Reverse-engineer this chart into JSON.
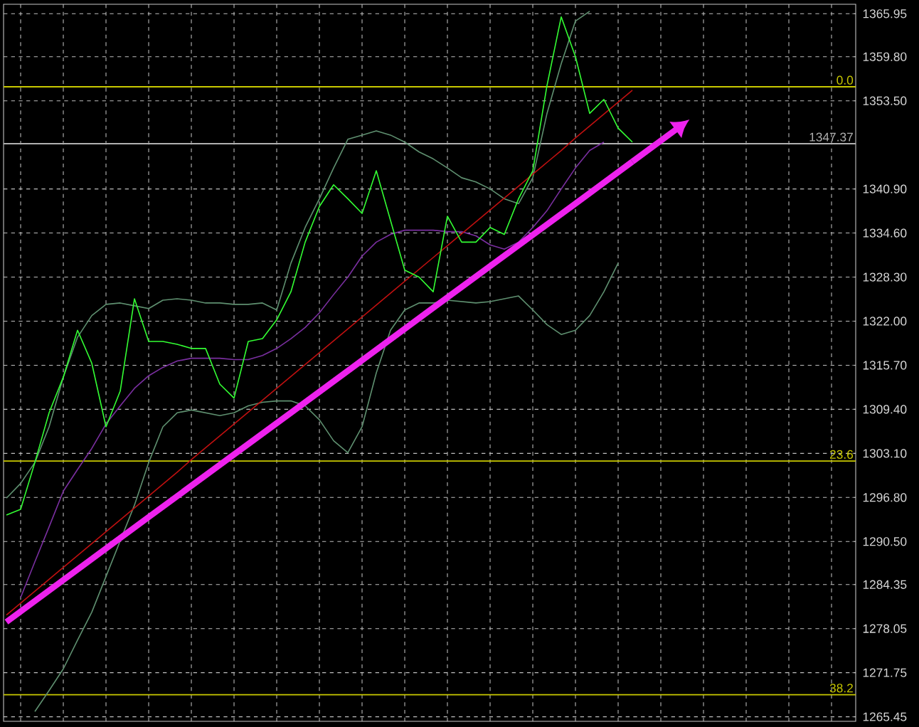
{
  "chart_data": {
    "type": "line",
    "categories": [
      null,
      null,
      null,
      null,
      null,
      null,
      null,
      null,
      null,
      null,
      null,
      null,
      null,
      null,
      null,
      null,
      null,
      null,
      null,
      null,
      null,
      null,
      null,
      null,
      null,
      null,
      null,
      null,
      null,
      null,
      null,
      null,
      null,
      null,
      null,
      null,
      null,
      null,
      null,
      null,
      null,
      null,
      null,
      null,
      null
    ],
    "series": [
      {
        "color": "#5f9070",
        "values": [
          1296.7,
          1298.8,
          1301.8,
          1306.9,
          1314.0,
          1319.7,
          1322.8,
          1324.4,
          1324.6,
          1324.2,
          1323.8,
          1325.0,
          1325.2,
          1325.0,
          1324.6,
          1324.6,
          1324.4,
          1324.4,
          1324.6,
          1323.6,
          1330.3,
          1335.4,
          1339.5,
          1343.9,
          1348.0,
          1348.6,
          1349.2,
          1348.6,
          1347.6,
          1346.2,
          1345.2,
          1343.9,
          1342.5,
          1341.9,
          1340.9,
          1339.5,
          1338.8,
          1342.5,
          1351.7,
          1358.8,
          1364.9,
          1366.3,
          null,
          null,
          null
        ]
      },
      {
        "color": "#5f9070",
        "values": [
          null,
          null,
          1266.2,
          1269.2,
          1272.3,
          1276.4,
          1280.4,
          1285.5,
          1290.6,
          1295.7,
          1301.8,
          1306.9,
          1308.9,
          1309.3,
          1308.9,
          1308.5,
          1308.9,
          1309.9,
          1310.4,
          1310.6,
          1310.6,
          1309.9,
          1307.9,
          1304.9,
          1303.2,
          1306.9,
          1314.6,
          1320.7,
          1323.6,
          1324.6,
          1324.6,
          1325.0,
          1324.8,
          1324.6,
          1324.8,
          1325.2,
          1325.6,
          1323.6,
          1321.5,
          1320.1,
          1320.7,
          1322.8,
          1326.2,
          1330.3,
          null
        ]
      },
      {
        "color": "#7a2fa0",
        "values": [
          null,
          1282.5,
          1287.6,
          1292.6,
          1297.7,
          1300.8,
          1303.8,
          1307.3,
          1309.9,
          1312.4,
          1314.2,
          1315.4,
          1316.3,
          1316.7,
          1316.7,
          1316.7,
          1316.5,
          1316.5,
          1317.1,
          1318.1,
          1319.5,
          1321.1,
          1323.2,
          1325.8,
          1328.3,
          1331.3,
          1333.3,
          1334.4,
          1335.0,
          1335.0,
          1335.0,
          1334.8,
          1334.8,
          1334.2,
          1332.9,
          1332.3,
          1333.3,
          1335.4,
          1337.8,
          1340.9,
          1343.9,
          1346.4,
          1347.6,
          null,
          null
        ]
      },
      {
        "color": "#c01010",
        "values": [
          1280.0,
          1281.7,
          1283.4,
          1285.1,
          1286.8,
          1288.5,
          1290.2,
          1291.9,
          1293.6,
          1295.3,
          1297.0,
          1298.7,
          1300.4,
          1302.2,
          1303.9,
          1305.6,
          1307.3,
          1309.0,
          1310.7,
          1312.4,
          1314.1,
          1315.8,
          1317.5,
          1319.2,
          1320.9,
          1322.6,
          1324.3,
          1326.0,
          1327.7,
          1329.4,
          1331.1,
          1332.8,
          1334.5,
          1336.2,
          1337.9,
          1339.6,
          1341.3,
          1343.0,
          1344.7,
          1346.4,
          1348.2,
          1349.9,
          1351.6,
          1353.3,
          1355.0
        ]
      },
      {
        "color": "#33ff33",
        "values": [
          1294.3,
          1295.1,
          1301.8,
          1308.9,
          1314.0,
          1320.7,
          1316.0,
          1306.9,
          1312.0,
          1325.2,
          1319.1,
          1319.1,
          1318.7,
          1318.1,
          1318.1,
          1313.0,
          1311.0,
          1319.1,
          1319.5,
          1322.2,
          1326.2,
          1333.3,
          1338.4,
          1341.5,
          1339.5,
          1337.4,
          1343.5,
          1336.4,
          1329.3,
          1328.3,
          1326.2,
          1337.0,
          1333.3,
          1333.3,
          1335.4,
          1334.4,
          1339.5,
          1343.5,
          1355.7,
          1365.5,
          1359.8,
          1351.7,
          1353.7,
          1349.6,
          1347.6
        ]
      },
      {
        "color": "#ee22ee",
        "values": [
          1279.0,
          null,
          null,
          null,
          null,
          null,
          null,
          null,
          null,
          null,
          1294.0,
          null,
          null,
          null,
          null,
          null,
          null,
          null,
          null,
          null,
          1308.9,
          null,
          null,
          null,
          null,
          null,
          null,
          null,
          null,
          null,
          1323.9,
          null,
          null,
          null,
          null,
          null,
          null,
          null,
          null,
          null,
          1338.8,
          null,
          null,
          null,
          1344.8
        ]
      }
    ],
    "ylim": [
      1264.8,
      1367.3
    ],
    "yticks": [
      1265.45,
      1271.75,
      1278.05,
      1284.35,
      {
        "value": 1290.5,
        "label": "1290.50"
      },
      {
        "value": 1296.8,
        "label": "1296.80"
      },
      {
        "value": 1303.1,
        "label": "1303.10"
      },
      {
        "value": 1309.4,
        "label": "1309.40"
      },
      {
        "value": 1315.7,
        "label": "1315.70"
      },
      {
        "value": 1322,
        "label": "1322.00"
      },
      {
        "value": 1328.3,
        "label": "1328.30"
      },
      {
        "value": 1334.6,
        "label": "1334.60"
      },
      {
        "value": 1340.9,
        "label": "1340.90"
      },
      {
        "value": 1353.5,
        "label": "1353.50"
      },
      {
        "value": 1359.8,
        "label": "1359.80"
      },
      1365.95
    ],
    "ref_lines": [
      {
        "axis": "y",
        "value": 1355.5,
        "color": "#c8c800"
      },
      {
        "axis": "y",
        "value": 1347.37,
        "label": "1347.37",
        "color": "#b0b0b0"
      },
      {
        "axis": "y",
        "value": 1302.0,
        "color": "#c8c800"
      },
      {
        "axis": "y",
        "value": 1268.6,
        "color": "#c8c800"
      }
    ],
    "annotations": [
      {
        "text": "0.0",
        "y": 1355.5
      },
      {
        "text": "23.6",
        "y": 1302.0
      },
      {
        "text": "38.2",
        "y": 1268.6
      }
    ],
    "grid": true,
    "marker": "none",
    "tick_labels": "y"
  }
}
